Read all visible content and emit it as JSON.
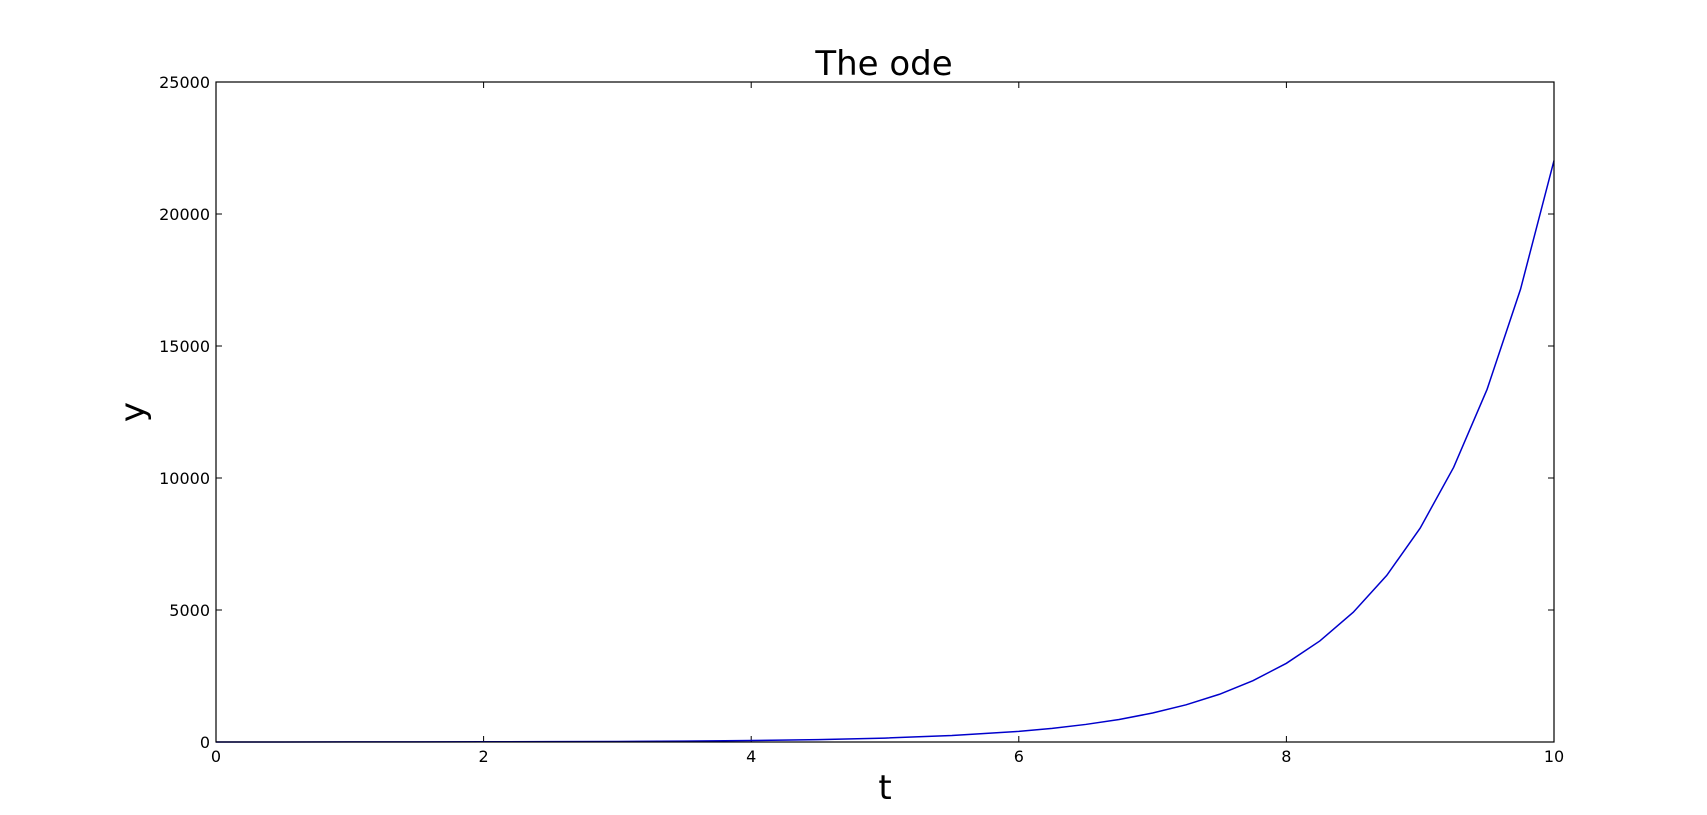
{
  "chart_data": {
    "type": "line",
    "title": "The ode",
    "xlabel": "t",
    "ylabel": "y",
    "xlim": [
      0,
      10
    ],
    "ylim": [
      0,
      25000
    ],
    "xticks": [
      0,
      2,
      4,
      6,
      8,
      10
    ],
    "yticks": [
      0,
      5000,
      10000,
      15000,
      20000,
      25000
    ],
    "grid": false,
    "legend": false,
    "series": [
      {
        "color": "#0000cc",
        "x": [
          0,
          0.5,
          1,
          1.5,
          2,
          2.5,
          3,
          3.5,
          4,
          4.5,
          5,
          5.5,
          6,
          6.25,
          6.5,
          6.75,
          7,
          7.25,
          7.5,
          7.75,
          8,
          8.25,
          8.5,
          8.75,
          9,
          9.25,
          9.5,
          9.75,
          10
        ],
        "y": [
          1,
          1.6,
          2.7,
          4.5,
          7.4,
          12,
          20,
          33,
          55,
          90,
          148,
          245,
          403,
          518,
          665,
          854,
          1097,
          1408,
          1808,
          2322,
          2981,
          3828,
          4915,
          6311,
          8103,
          10405,
          13360,
          17154,
          22026
        ]
      }
    ]
  }
}
